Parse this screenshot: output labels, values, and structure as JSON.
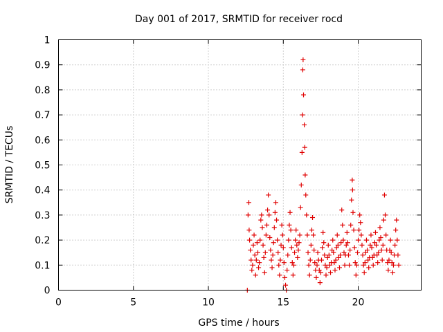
{
  "chart_data": {
    "type": "scatter",
    "title": "Day 001 of 2017, SRMTID for receiver rocd",
    "xlabel": "GPS time / hours",
    "ylabel": "SRMTID / TECUs",
    "xlim": [
      0,
      24.2
    ],
    "ylim": [
      0,
      1
    ],
    "xticks": [
      0,
      5,
      10,
      15,
      20
    ],
    "xtick_labels": [
      "0",
      "5",
      "10",
      "15",
      "20"
    ],
    "yticks": [
      0,
      0.1,
      0.2,
      0.3,
      0.4,
      0.5,
      0.6,
      0.7,
      0.8,
      0.9,
      1
    ],
    "ytick_labels": [
      "0",
      "0.1",
      "0.2",
      "0.3",
      "0.4",
      "0.5",
      "0.6",
      "0.7",
      "0.8",
      "0.9",
      "1"
    ],
    "grid": true,
    "marker": "plus",
    "series": [
      {
        "name": "SRMTID",
        "color": "#e00000",
        "points": [
          [
            12.6,
            0.0
          ],
          [
            12.65,
            0.3
          ],
          [
            12.7,
            0.35
          ],
          [
            12.72,
            0.24
          ],
          [
            12.75,
            0.2
          ],
          [
            12.8,
            0.16
          ],
          [
            12.85,
            0.12
          ],
          [
            12.9,
            0.08
          ],
          [
            12.95,
            0.1
          ],
          [
            13.0,
            0.18
          ],
          [
            13.05,
            0.22
          ],
          [
            13.1,
            0.14
          ],
          [
            13.15,
            0.06
          ],
          [
            13.2,
            0.12
          ],
          [
            13.25,
            0.19
          ],
          [
            13.3,
            0.15
          ],
          [
            13.35,
            0.09
          ],
          [
            13.4,
            0.11
          ],
          [
            13.45,
            0.2
          ],
          [
            13.5,
            0.28
          ],
          [
            13.55,
            0.3
          ],
          [
            13.6,
            0.25
          ],
          [
            13.65,
            0.18
          ],
          [
            13.7,
            0.13
          ],
          [
            13.75,
            0.07
          ],
          [
            13.8,
            0.15
          ],
          [
            13.85,
            0.22
          ],
          [
            13.9,
            0.26
          ],
          [
            13.95,
            0.32
          ],
          [
            14.0,
            0.38
          ],
          [
            14.05,
            0.3
          ],
          [
            14.1,
            0.21
          ],
          [
            14.15,
            0.16
          ],
          [
            14.2,
            0.12
          ],
          [
            14.25,
            0.09
          ],
          [
            14.3,
            0.14
          ],
          [
            14.35,
            0.19
          ],
          [
            14.4,
            0.25
          ],
          [
            14.45,
            0.31
          ],
          [
            14.5,
            0.35
          ],
          [
            14.55,
            0.28
          ],
          [
            14.6,
            0.2
          ],
          [
            14.65,
            0.15
          ],
          [
            14.7,
            0.1
          ],
          [
            14.75,
            0.06
          ],
          [
            14.8,
            0.12
          ],
          [
            14.85,
            0.18
          ],
          [
            14.9,
            0.26
          ],
          [
            14.95,
            0.22
          ],
          [
            15.0,
            0.17
          ],
          [
            15.05,
            0.11
          ],
          [
            15.1,
            0.05
          ],
          [
            15.15,
            0.02
          ],
          [
            15.2,
            0.0
          ],
          [
            15.25,
            0.08
          ],
          [
            15.3,
            0.14
          ],
          [
            15.35,
            0.2
          ],
          [
            15.4,
            0.26
          ],
          [
            15.45,
            0.31
          ],
          [
            15.5,
            0.24
          ],
          [
            15.55,
            0.17
          ],
          [
            15.6,
            0.11
          ],
          [
            15.65,
            0.06
          ],
          [
            15.7,
            0.1
          ],
          [
            15.75,
            0.15
          ],
          [
            15.8,
            0.2
          ],
          [
            15.85,
            0.24
          ],
          [
            15.9,
            0.18
          ],
          [
            15.95,
            0.13
          ],
          [
            16.0,
            0.16
          ],
          [
            16.05,
            0.19
          ],
          [
            16.1,
            0.22
          ],
          [
            16.15,
            0.33
          ],
          [
            16.2,
            0.42
          ],
          [
            16.25,
            0.55
          ],
          [
            16.28,
            0.7
          ],
          [
            16.3,
            0.88
          ],
          [
            16.32,
            0.92
          ],
          [
            16.35,
            0.78
          ],
          [
            16.4,
            0.66
          ],
          [
            16.43,
            0.57
          ],
          [
            16.46,
            0.46
          ],
          [
            16.5,
            0.38
          ],
          [
            16.55,
            0.3
          ],
          [
            16.6,
            0.22
          ],
          [
            16.65,
            0.15
          ],
          [
            16.7,
            0.1
          ],
          [
            16.75,
            0.06
          ],
          [
            16.8,
            0.12
          ],
          [
            16.85,
            0.18
          ],
          [
            16.9,
            0.24
          ],
          [
            16.95,
            0.29
          ],
          [
            17.0,
            0.22
          ],
          [
            17.05,
            0.16
          ],
          [
            17.1,
            0.11
          ],
          [
            17.15,
            0.08
          ],
          [
            17.2,
            0.05
          ],
          [
            17.25,
            0.1
          ],
          [
            17.3,
            0.15
          ],
          [
            17.35,
            0.12
          ],
          [
            17.4,
            0.08
          ],
          [
            17.45,
            0.03
          ],
          [
            17.5,
            0.07
          ],
          [
            17.55,
            0.12
          ],
          [
            17.6,
            0.17
          ],
          [
            17.65,
            0.23
          ],
          [
            17.7,
            0.19
          ],
          [
            17.75,
            0.14
          ],
          [
            17.8,
            0.1
          ],
          [
            17.85,
            0.06
          ],
          [
            17.9,
            0.09
          ],
          [
            17.95,
            0.13
          ],
          [
            18.0,
            0.18
          ],
          [
            18.05,
            0.14
          ],
          [
            18.1,
            0.1
          ],
          [
            18.15,
            0.07
          ],
          [
            18.2,
            0.11
          ],
          [
            18.25,
            0.16
          ],
          [
            18.3,
            0.2
          ],
          [
            18.35,
            0.15
          ],
          [
            18.4,
            0.11
          ],
          [
            18.45,
            0.08
          ],
          [
            18.5,
            0.12
          ],
          [
            18.55,
            0.17
          ],
          [
            18.6,
            0.22
          ],
          [
            18.65,
            0.18
          ],
          [
            18.7,
            0.13
          ],
          [
            18.75,
            0.09
          ],
          [
            18.8,
            0.14
          ],
          [
            18.85,
            0.19
          ],
          [
            18.9,
            0.32
          ],
          [
            18.95,
            0.26
          ],
          [
            19.0,
            0.2
          ],
          [
            19.05,
            0.15
          ],
          [
            19.1,
            0.1
          ],
          [
            19.15,
            0.14
          ],
          [
            19.2,
            0.18
          ],
          [
            19.25,
            0.23
          ],
          [
            19.3,
            0.19
          ],
          [
            19.35,
            0.14
          ],
          [
            19.4,
            0.1
          ],
          [
            19.45,
            0.16
          ],
          [
            19.5,
            0.26
          ],
          [
            19.55,
            0.36
          ],
          [
            19.6,
            0.44
          ],
          [
            19.62,
            0.4
          ],
          [
            19.65,
            0.31
          ],
          [
            19.7,
            0.24
          ],
          [
            19.75,
            0.17
          ],
          [
            19.8,
            0.11
          ],
          [
            19.85,
            0.06
          ],
          [
            19.9,
            0.1
          ],
          [
            19.95,
            0.15
          ],
          [
            20.0,
            0.2
          ],
          [
            20.05,
            0.24
          ],
          [
            20.1,
            0.3
          ],
          [
            20.15,
            0.27
          ],
          [
            20.2,
            0.22
          ],
          [
            20.25,
            0.18
          ],
          [
            20.3,
            0.14
          ],
          [
            20.35,
            0.1
          ],
          [
            20.4,
            0.07
          ],
          [
            20.45,
            0.11
          ],
          [
            20.5,
            0.15
          ],
          [
            20.55,
            0.2
          ],
          [
            20.6,
            0.16
          ],
          [
            20.65,
            0.12
          ],
          [
            20.7,
            0.09
          ],
          [
            20.75,
            0.13
          ],
          [
            20.8,
            0.18
          ],
          [
            20.85,
            0.22
          ],
          [
            20.9,
            0.17
          ],
          [
            20.95,
            0.13
          ],
          [
            21.0,
            0.1
          ],
          [
            21.05,
            0.14
          ],
          [
            21.1,
            0.19
          ],
          [
            21.15,
            0.23
          ],
          [
            21.2,
            0.18
          ],
          [
            21.25,
            0.14
          ],
          [
            21.3,
            0.11
          ],
          [
            21.35,
            0.15
          ],
          [
            21.4,
            0.2
          ],
          [
            21.45,
            0.25
          ],
          [
            21.5,
            0.21
          ],
          [
            21.55,
            0.16
          ],
          [
            21.6,
            0.12
          ],
          [
            21.65,
            0.18
          ],
          [
            21.7,
            0.28
          ],
          [
            21.75,
            0.38
          ],
          [
            21.8,
            0.3
          ],
          [
            21.85,
            0.22
          ],
          [
            21.9,
            0.16
          ],
          [
            21.95,
            0.11
          ],
          [
            22.0,
            0.08
          ],
          [
            22.05,
            0.12
          ],
          [
            22.1,
            0.16
          ],
          [
            22.15,
            0.2
          ],
          [
            22.2,
            0.15
          ],
          [
            22.25,
            0.11
          ],
          [
            22.3,
            0.07
          ],
          [
            22.35,
            0.1
          ],
          [
            22.4,
            0.14
          ],
          [
            22.45,
            0.18
          ],
          [
            22.5,
            0.24
          ],
          [
            22.55,
            0.28
          ],
          [
            22.6,
            0.2
          ],
          [
            22.65,
            0.14
          ],
          [
            22.7,
            0.1
          ]
        ]
      }
    ]
  }
}
